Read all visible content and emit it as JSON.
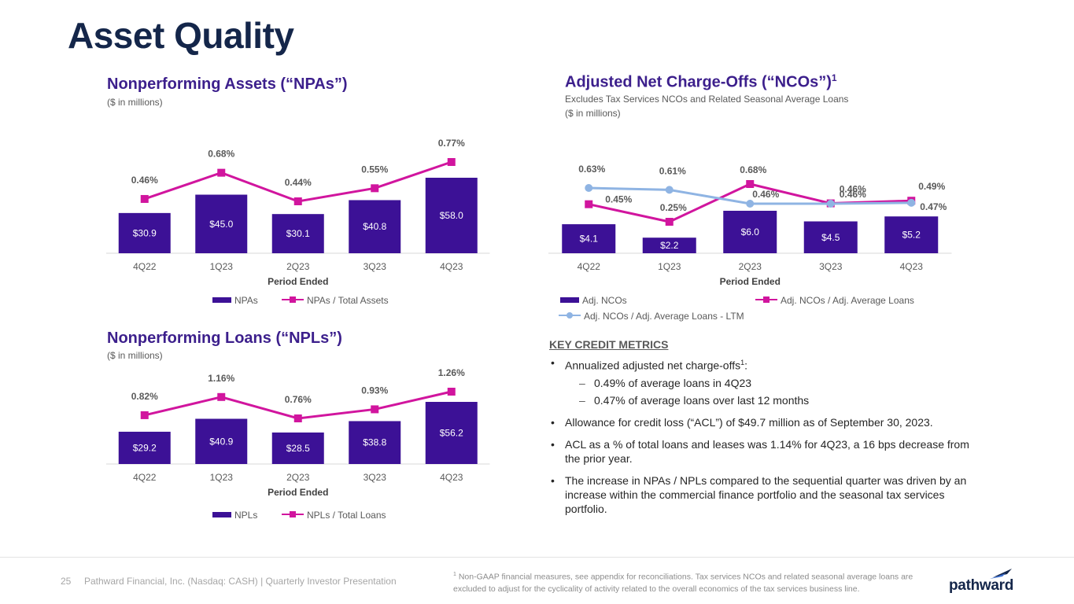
{
  "page": {
    "title": "Asset Quality",
    "page_number": "25",
    "footer": "Pathward Financial, Inc. (Nasdaq: CASH) | Quarterly Investor Presentation",
    "footnote_marker": "1",
    "footnote": "Non-GAAP financial measures, see appendix for reconciliations. Tax services NCOs and related seasonal average loans are excluded to adjust for the cyclicality of activity related to the overall economics of the tax services business line.",
    "logo_text": "pathward"
  },
  "metrics": {
    "title": "KEY CREDIT METRICS",
    "b1": "Annualized adjusted net charge-offs",
    "b1_sup": "1",
    "b1_tail": ":",
    "b1_s1": "0.49% of average loans in 4Q23",
    "b1_s2": "0.47% of average loans over last 12 months",
    "b2": "Allowance for credit loss (“ACL”) of $49.7 million as of September 30, 2023.",
    "b3": "ACL as a % of total loans and leases was 1.14% for 4Q23, a 16 bps decrease from the prior year.",
    "b4": "The increase in NPAs / NPLs compared to the sequential quarter was driven by an increase within the commercial finance portfolio and the seasonal tax services portfolio."
  },
  "chart_data": [
    {
      "id": "npa",
      "type": "bar",
      "title": "Nonperforming Assets (“NPAs”)",
      "subtitle": "($ in millions)",
      "xlabel": "Period Ended",
      "categories": [
        "4Q22",
        "1Q23",
        "2Q23",
        "3Q23",
        "4Q23"
      ],
      "bar_series": {
        "name": "NPAs",
        "values": [
          30.9,
          45.0,
          30.1,
          40.8,
          58.0
        ],
        "labels": [
          "$30.9",
          "$45.0",
          "$30.1",
          "$40.8",
          "$58.0"
        ]
      },
      "line_series": [
        {
          "name": "NPAs / Total Assets",
          "values": [
            0.46,
            0.68,
            0.44,
            0.55,
            0.77
          ],
          "labels": [
            "0.46%",
            "0.68%",
            "0.44%",
            "0.55%",
            "0.77%"
          ]
        }
      ]
    },
    {
      "id": "npl",
      "type": "bar",
      "title": "Nonperforming Loans (“NPLs”)",
      "subtitle": "($ in millions)",
      "xlabel": "Period Ended",
      "categories": [
        "4Q22",
        "1Q23",
        "2Q23",
        "3Q23",
        "4Q23"
      ],
      "bar_series": {
        "name": "NPLs",
        "values": [
          29.2,
          40.9,
          28.5,
          38.8,
          56.2
        ],
        "labels": [
          "$29.2",
          "$40.9",
          "$28.5",
          "$38.8",
          "$56.2"
        ]
      },
      "line_series": [
        {
          "name": "NPLs / Total Loans",
          "values": [
            0.82,
            1.16,
            0.76,
            0.93,
            1.26
          ],
          "labels": [
            "0.82%",
            "1.16%",
            "0.76%",
            "0.93%",
            "1.26%"
          ]
        }
      ]
    },
    {
      "id": "nco",
      "type": "bar",
      "title": "Adjusted Net Charge-Offs (“NCOs”)",
      "title_sup": "1",
      "subtitle": "Excludes Tax Services NCOs and Related Seasonal Average Loans",
      "subtitle2": "($ in millions)",
      "xlabel": "Period Ended",
      "categories": [
        "4Q22",
        "1Q23",
        "2Q23",
        "3Q23",
        "4Q23"
      ],
      "bar_series": {
        "name": "Adj. NCOs",
        "values": [
          4.1,
          2.2,
          6.0,
          4.5,
          5.2
        ],
        "labels": [
          "$4.1",
          "$2.2",
          "$6.0",
          "$4.5",
          "$5.2"
        ]
      },
      "line_series": [
        {
          "name": "Adj. NCOs / Adj. Average Loans",
          "values": [
            0.45,
            0.25,
            0.68,
            0.46,
            0.49
          ],
          "labels": [
            "0.45%",
            "0.25%",
            "0.68%",
            "0.46%",
            "0.49%"
          ]
        },
        {
          "name": "Adj. NCOs / Adj. Average Loans - LTM",
          "values": [
            0.63,
            0.61,
            0.46,
            0.46,
            0.47
          ],
          "labels": [
            "0.63%",
            "0.61%",
            "0.46%",
            "0.46%",
            "0.47%"
          ]
        }
      ]
    }
  ],
  "colors": {
    "bar": "#3c1196",
    "line_pink": "#d1159e",
    "line_blue": "#8fb4e3",
    "title": "#14264a",
    "chart_title": "#3c1f8c"
  }
}
